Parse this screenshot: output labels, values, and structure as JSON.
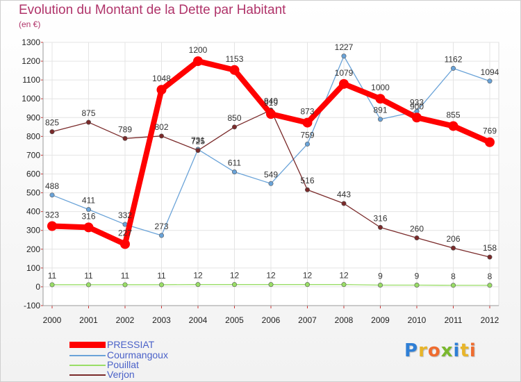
{
  "header": {
    "title": "Evolution du Montant de la Dette par Habitant",
    "subtitle": "(en €)"
  },
  "chart_data": {
    "type": "line",
    "title": "Evolution du Montant de la Dette par Habitant",
    "subtitle": "(en €)",
    "xlabel": "",
    "ylabel": "",
    "categories": [
      "2000",
      "2001",
      "2002",
      "2003",
      "2004",
      "2005",
      "2006",
      "2007",
      "2008",
      "2009",
      "2010",
      "2011",
      "2012"
    ],
    "ylim": [
      -100,
      1300
    ],
    "yticks": [
      "-100",
      "0",
      "100",
      "200",
      "300",
      "400",
      "500",
      "600",
      "700",
      "800",
      "900",
      "1000",
      "1100",
      "1200",
      "1300"
    ],
    "grid": true,
    "legend_position": "bottom-left",
    "series": [
      {
        "name": "PRESSIAT",
        "color": "#ff0000",
        "values": [
          323,
          316,
          227,
          1048,
          1200,
          1153,
          919,
          873,
          1079,
          1000,
          900,
          855,
          769
        ]
      },
      {
        "name": "Courmangoux",
        "color": "#6aa3d8",
        "values": [
          488,
          411,
          332,
          273,
          731,
          611,
          549,
          759,
          1227,
          891,
          933,
          1162,
          1094
        ]
      },
      {
        "name": "Pouillat",
        "color": "#99dd66",
        "values": [
          11,
          11,
          11,
          11,
          12,
          12,
          12,
          12,
          12,
          9,
          9,
          8,
          8
        ]
      },
      {
        "name": "Verjon",
        "color": "#7a2a2a",
        "values": [
          825,
          875,
          789,
          802,
          725,
          850,
          940,
          516,
          443,
          316,
          260,
          206,
          158
        ]
      }
    ]
  },
  "legend": {
    "items": [
      {
        "label": "PRESSIAT",
        "color": "#ff0000"
      },
      {
        "label": "Courmangoux",
        "color": "#6aa3d8"
      },
      {
        "label": "Pouillat",
        "color": "#99dd66"
      },
      {
        "label": "Verjon",
        "color": "#7a2a2a"
      }
    ]
  },
  "logo": {
    "letters": [
      "P",
      "r",
      "o",
      "x",
      "i",
      "t",
      "i"
    ],
    "colors": [
      "#2f7fd6",
      "#e8b52a",
      "#ef6c2f",
      "#7ab82e",
      "#2f7fd6",
      "#e8b52a",
      "#ef6c2f"
    ]
  }
}
